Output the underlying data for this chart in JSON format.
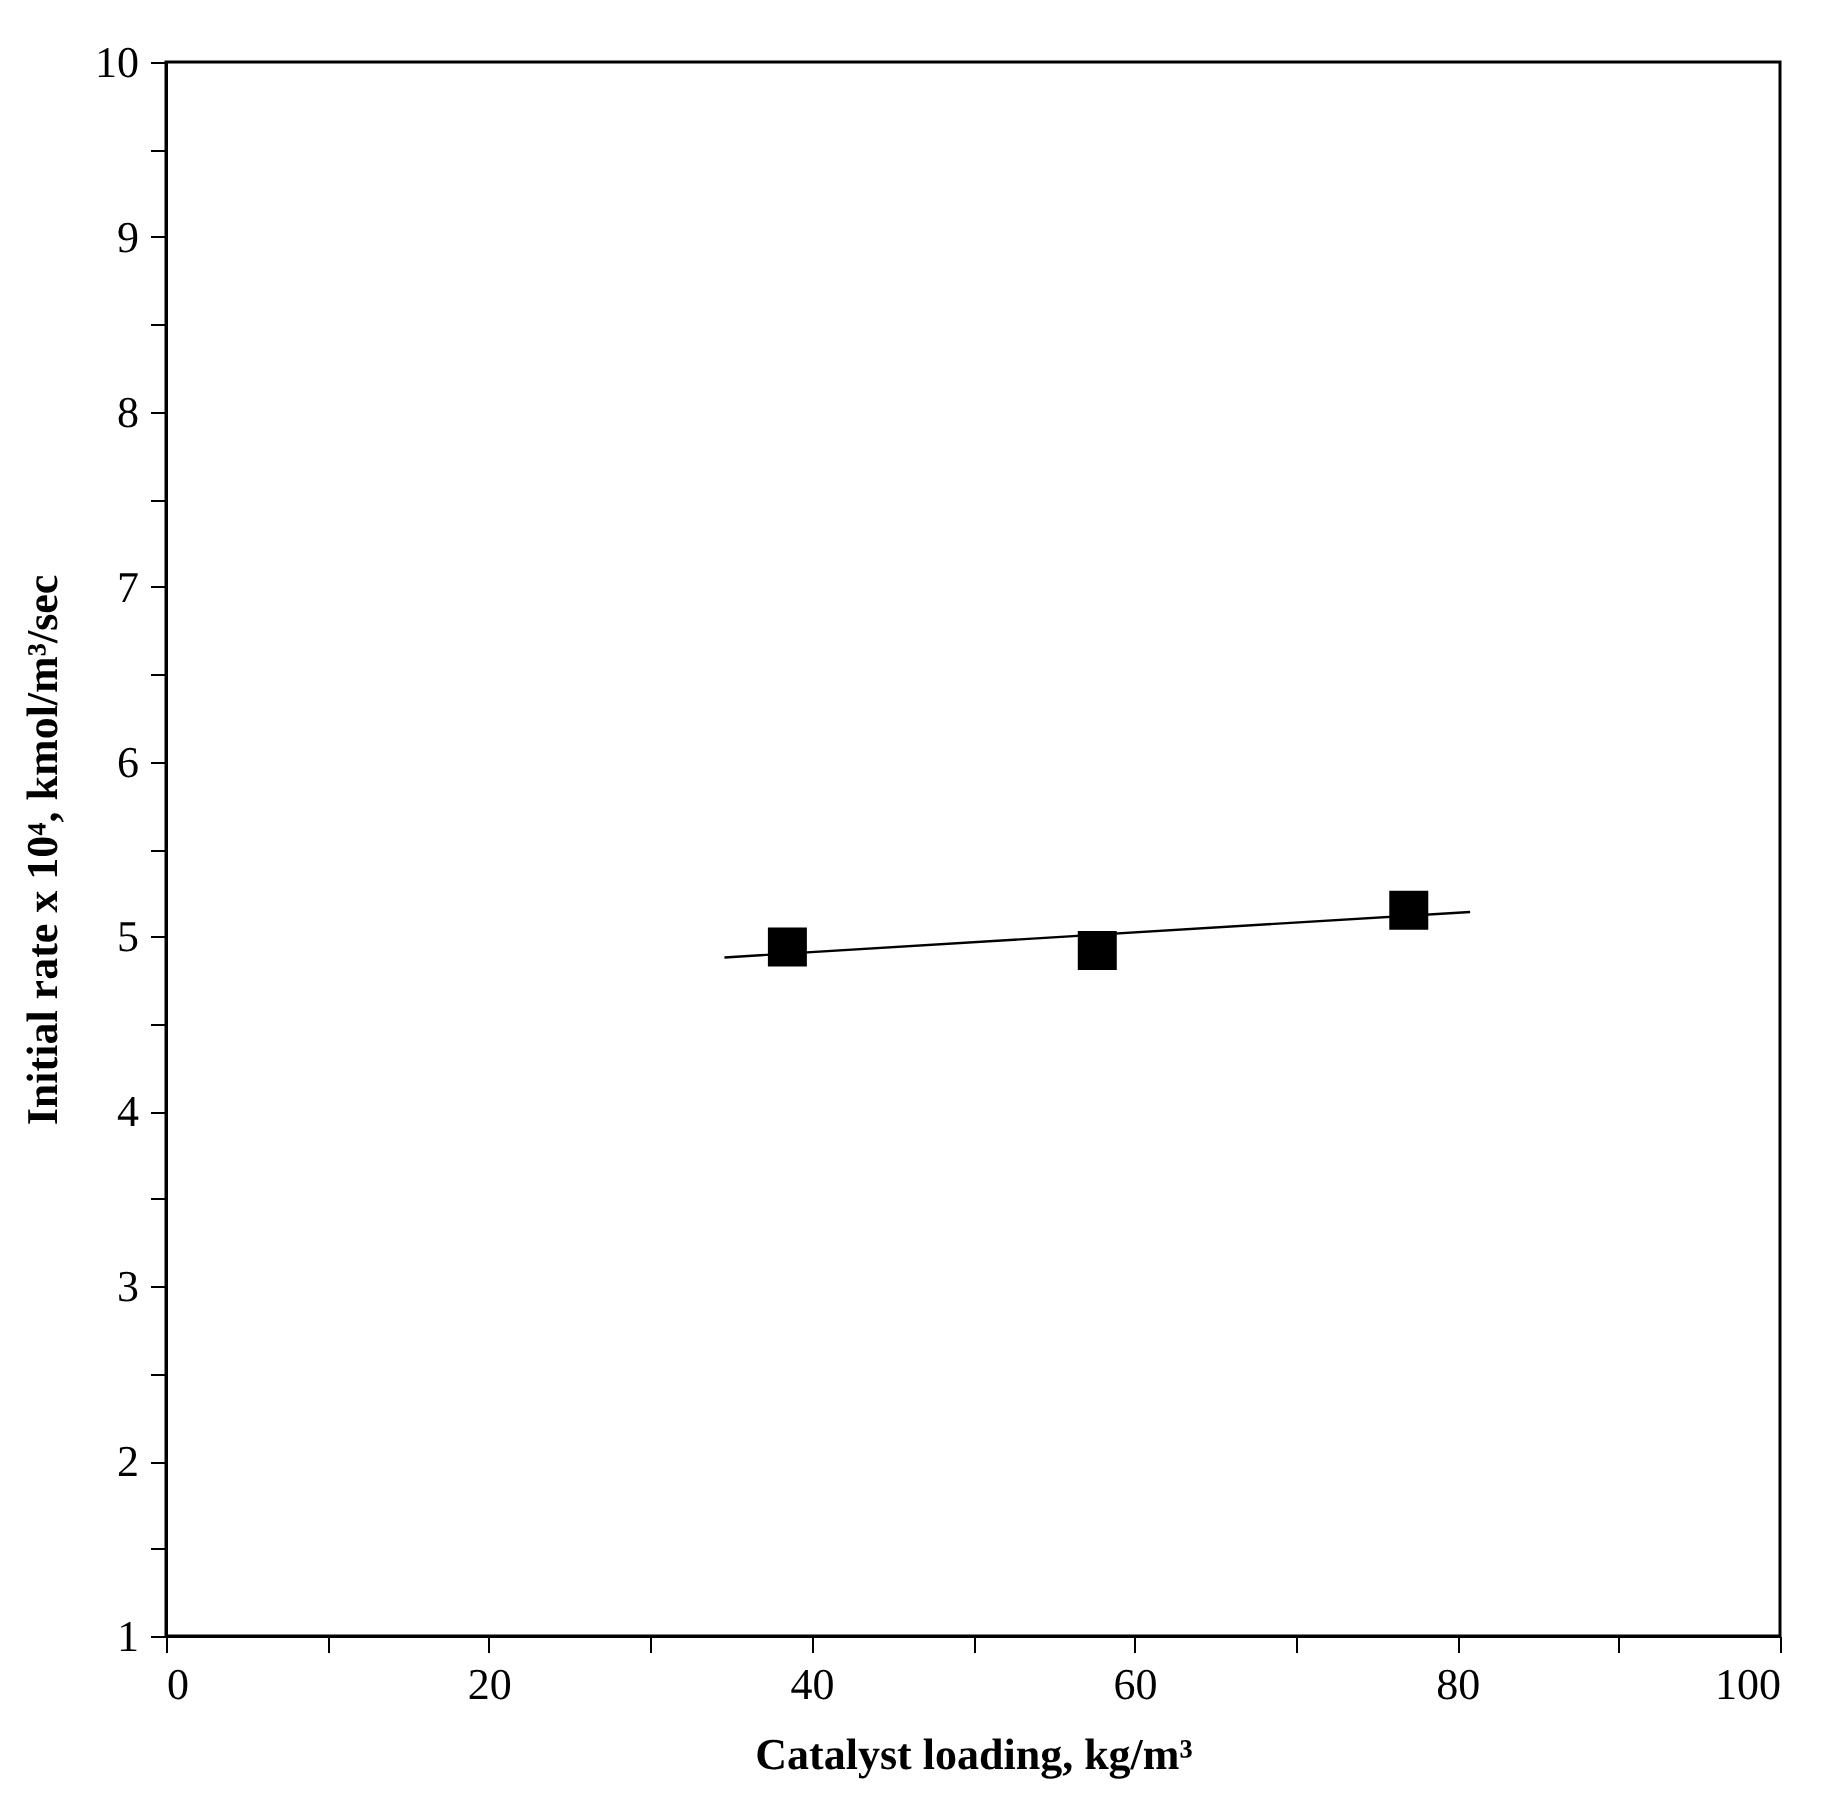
{
  "chart_data": {
    "type": "scatter",
    "xlabel": "Catalyst loading, kg/m³",
    "ylabel": "Initial rate x 10⁴, kmol/m³/sec",
    "xlim": [
      0,
      100
    ],
    "ylim": [
      1,
      10
    ],
    "xticks": [
      0,
      {
        "value": 10,
        "label": null
      },
      20,
      {
        "value": 30,
        "label": null
      },
      40,
      {
        "value": 50,
        "label": null
      },
      60,
      {
        "value": 70,
        "label": null
      },
      80,
      {
        "value": 90,
        "label": null
      },
      100
    ],
    "yticks": [
      1,
      {
        "value": 1.5,
        "label": null
      },
      2,
      {
        "value": 2.5,
        "label": null
      },
      3,
      {
        "value": 3.5,
        "label": null
      },
      4,
      {
        "value": 4.5,
        "label": null
      },
      5,
      {
        "value": 5.5,
        "label": null
      },
      6,
      {
        "value": 6.5,
        "label": null
      },
      7,
      {
        "value": 7.5,
        "label": null
      },
      8,
      {
        "value": 8.5,
        "label": null
      },
      9,
      {
        "value": 9.5,
        "label": null
      },
      10
    ],
    "grid": false,
    "series": [
      {
        "color": "#000000",
        "marker": "square",
        "x": [
          38.5,
          57.7,
          77.0
        ],
        "values": [
          4.94,
          4.92,
          5.15
        ]
      },
      {
        "type": "line",
        "color": "#000000",
        "marker": "none",
        "line_style": "solid",
        "x": [
          34.6,
          80.8
        ],
        "values": [
          4.88,
          5.14
        ]
      }
    ]
  }
}
